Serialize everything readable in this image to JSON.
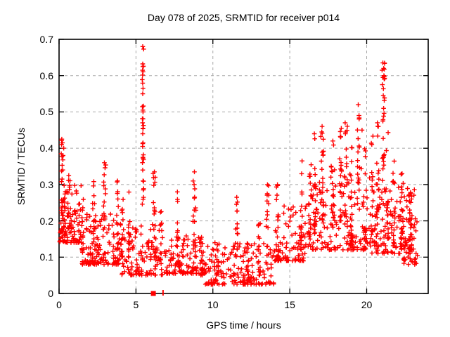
{
  "chart_data": {
    "type": "scatter",
    "title": "Day 078 of 2025, SRMTID for receiver p014",
    "xlabel": "GPS time / hours",
    "ylabel": "SRMTID / TECUs",
    "xlim": [
      0,
      24
    ],
    "ylim": [
      0,
      0.7
    ],
    "xticks": [
      {
        "v": 0,
        "label": "0"
      },
      {
        "v": 5,
        "label": "5"
      },
      {
        "v": 10,
        "label": "10"
      },
      {
        "v": 15,
        "label": "15"
      },
      {
        "v": 20,
        "label": "20"
      }
    ],
    "yticks": [
      {
        "v": 0.0,
        "label": "0"
      },
      {
        "v": 0.1,
        "label": "0.1"
      },
      {
        "v": 0.2,
        "label": "0.2"
      },
      {
        "v": 0.3,
        "label": "0.3"
      },
      {
        "v": 0.4,
        "label": "0.4"
      },
      {
        "v": 0.5,
        "label": "0.5"
      },
      {
        "v": 0.6,
        "label": "0.6"
      },
      {
        "v": 0.7,
        "label": "0.7"
      }
    ],
    "grid": {
      "on": true,
      "color": "#a8a8a8",
      "dash": "4 4"
    },
    "legend": "none",
    "marker": {
      "type": "plus",
      "size": 7,
      "color": "#ff0000"
    },
    "series_name": "SRMTID",
    "seed": 20250314,
    "points": [
      [
        0.18,
        0.425
      ],
      [
        0.22,
        0.415
      ],
      [
        0.3,
        0.4
      ],
      [
        0.14,
        0.385
      ],
      [
        0.26,
        0.38
      ],
      [
        5.44,
        0.68
      ],
      [
        5.45,
        0.625
      ],
      [
        5.43,
        0.615
      ],
      [
        5.46,
        0.565
      ],
      [
        5.44,
        0.55
      ],
      [
        5.45,
        0.505
      ],
      [
        5.46,
        0.5
      ],
      [
        5.43,
        0.47
      ],
      [
        5.45,
        0.455
      ],
      [
        5.44,
        0.44
      ],
      [
        5.46,
        0.415
      ],
      [
        5.43,
        0.405
      ],
      [
        5.45,
        0.375
      ],
      [
        5.44,
        0.34
      ],
      [
        5.46,
        0.31
      ],
      [
        2.95,
        0.36
      ],
      [
        3.8,
        0.31
      ],
      [
        6.2,
        0.335
      ],
      [
        6.25,
        0.32
      ],
      [
        8.8,
        0.335
      ],
      [
        8.78,
        0.3
      ],
      [
        11.55,
        0.265
      ],
      [
        13.55,
        0.3
      ],
      [
        14.2,
        0.3
      ],
      [
        15.8,
        0.365
      ],
      [
        16.6,
        0.44
      ],
      [
        17.1,
        0.46
      ],
      [
        17.08,
        0.445
      ],
      [
        17.8,
        0.42
      ],
      [
        18.35,
        0.455
      ],
      [
        18.6,
        0.47
      ],
      [
        18.62,
        0.44
      ],
      [
        19.45,
        0.52
      ],
      [
        19.5,
        0.49
      ],
      [
        19.7,
        0.45
      ],
      [
        21.05,
        0.635
      ],
      [
        21.1,
        0.62
      ],
      [
        21.0,
        0.615
      ],
      [
        21.12,
        0.6
      ],
      [
        21.06,
        0.595
      ],
      [
        21.02,
        0.575
      ],
      [
        21.08,
        0.545
      ],
      [
        21.1,
        0.51
      ],
      [
        21.05,
        0.475
      ],
      [
        20.7,
        0.47
      ],
      [
        22.3,
        0.33
      ],
      [
        23.3,
        0.105
      ]
    ],
    "zero_markers": [
      {
        "x": 6.13,
        "style": "square"
      },
      {
        "x": 6.76,
        "style": "tick"
      }
    ],
    "clusters": [
      {
        "x": 0.75,
        "s": 0.75,
        "lo": 0.14,
        "hi": 0.3,
        "n": 90,
        "t": "band"
      },
      {
        "x": 2.75,
        "s": 1.25,
        "lo": 0.08,
        "hi": 0.22,
        "n": 130,
        "t": "band"
      },
      {
        "x": 5.5,
        "s": 1.5,
        "lo": 0.05,
        "hi": 0.2,
        "n": 120,
        "t": "band"
      },
      {
        "x": 8.25,
        "s": 1.25,
        "lo": 0.055,
        "hi": 0.16,
        "n": 110,
        "t": "band"
      },
      {
        "x": 11.75,
        "s": 2.25,
        "lo": 0.025,
        "hi": 0.14,
        "n": 170,
        "t": "band"
      },
      {
        "x": 15.0,
        "s": 1.0,
        "lo": 0.09,
        "hi": 0.25,
        "n": 90,
        "t": "band"
      },
      {
        "x": 18.0,
        "s": 2.0,
        "lo": 0.12,
        "hi": 0.35,
        "n": 150,
        "t": "band"
      },
      {
        "x": 21.5,
        "s": 1.5,
        "lo": 0.11,
        "hi": 0.32,
        "n": 130,
        "t": "band"
      },
      {
        "x": 22.85,
        "s": 0.45,
        "lo": 0.08,
        "hi": 0.3,
        "n": 55,
        "t": "band"
      },
      {
        "x": 0.2,
        "s": 0.1,
        "lo": 0.17,
        "hi": 0.43,
        "n": 22,
        "t": "col"
      },
      {
        "x": 0.35,
        "s": 0.1,
        "lo": 0.16,
        "hi": 0.3,
        "n": 14,
        "t": "col"
      },
      {
        "x": 0.65,
        "s": 0.15,
        "lo": 0.18,
        "hi": 0.33,
        "n": 18,
        "t": "col"
      },
      {
        "x": 1.55,
        "s": 0.1,
        "lo": 0.12,
        "hi": 0.28,
        "n": 14,
        "t": "col"
      },
      {
        "x": 2.25,
        "s": 0.1,
        "lo": 0.12,
        "hi": 0.31,
        "n": 14,
        "t": "col"
      },
      {
        "x": 2.95,
        "s": 0.08,
        "lo": 0.15,
        "hi": 0.36,
        "n": 16,
        "t": "string"
      },
      {
        "x": 3.8,
        "s": 0.1,
        "lo": 0.12,
        "hi": 0.31,
        "n": 14,
        "t": "col"
      },
      {
        "x": 4.1,
        "s": 0.1,
        "lo": 0.1,
        "hi": 0.26,
        "n": 12,
        "t": "col"
      },
      {
        "x": 4.55,
        "s": 0.1,
        "lo": 0.1,
        "hi": 0.3,
        "n": 14,
        "t": "col"
      },
      {
        "x": 5.45,
        "s": 0.05,
        "lo": 0.2,
        "hi": 0.68,
        "n": 24,
        "t": "string"
      },
      {
        "x": 6.2,
        "s": 0.12,
        "lo": 0.1,
        "hi": 0.34,
        "n": 18,
        "t": "col"
      },
      {
        "x": 6.6,
        "s": 0.1,
        "lo": 0.08,
        "hi": 0.25,
        "n": 12,
        "t": "col"
      },
      {
        "x": 7.7,
        "s": 0.12,
        "lo": 0.08,
        "hi": 0.28,
        "n": 16,
        "t": "col"
      },
      {
        "x": 8.8,
        "s": 0.1,
        "lo": 0.08,
        "hi": 0.34,
        "n": 16,
        "t": "string"
      },
      {
        "x": 9.3,
        "s": 0.1,
        "lo": 0.05,
        "hi": 0.17,
        "n": 12,
        "t": "col"
      },
      {
        "x": 10.3,
        "s": 0.1,
        "lo": 0.05,
        "hi": 0.18,
        "n": 12,
        "t": "col"
      },
      {
        "x": 11.55,
        "s": 0.08,
        "lo": 0.08,
        "hi": 0.27,
        "n": 12,
        "t": "string"
      },
      {
        "x": 12.3,
        "s": 0.1,
        "lo": 0.03,
        "hi": 0.14,
        "n": 12,
        "t": "col"
      },
      {
        "x": 13.0,
        "s": 0.1,
        "lo": 0.05,
        "hi": 0.2,
        "n": 12,
        "t": "col"
      },
      {
        "x": 13.55,
        "s": 0.1,
        "lo": 0.08,
        "hi": 0.3,
        "n": 12,
        "t": "string"
      },
      {
        "x": 14.2,
        "s": 0.1,
        "lo": 0.1,
        "hi": 0.3,
        "n": 14,
        "t": "col"
      },
      {
        "x": 15.75,
        "s": 0.12,
        "lo": 0.12,
        "hi": 0.36,
        "n": 16,
        "t": "col"
      },
      {
        "x": 16.3,
        "s": 0.12,
        "lo": 0.15,
        "hi": 0.4,
        "n": 18,
        "t": "col"
      },
      {
        "x": 16.65,
        "s": 0.1,
        "lo": 0.18,
        "hi": 0.44,
        "n": 18,
        "t": "col"
      },
      {
        "x": 17.1,
        "s": 0.1,
        "lo": 0.15,
        "hi": 0.46,
        "n": 20,
        "t": "string"
      },
      {
        "x": 17.8,
        "s": 0.12,
        "lo": 0.18,
        "hi": 0.42,
        "n": 18,
        "t": "col"
      },
      {
        "x": 18.3,
        "s": 0.1,
        "lo": 0.2,
        "hi": 0.45,
        "n": 20,
        "t": "col"
      },
      {
        "x": 18.65,
        "s": 0.1,
        "lo": 0.18,
        "hi": 0.47,
        "n": 18,
        "t": "string"
      },
      {
        "x": 19.0,
        "s": 0.1,
        "lo": 0.15,
        "hi": 0.42,
        "n": 16,
        "t": "col"
      },
      {
        "x": 19.45,
        "s": 0.08,
        "lo": 0.2,
        "hi": 0.52,
        "n": 16,
        "t": "string"
      },
      {
        "x": 19.9,
        "s": 0.1,
        "lo": 0.15,
        "hi": 0.42,
        "n": 14,
        "t": "col"
      },
      {
        "x": 20.35,
        "s": 0.1,
        "lo": 0.17,
        "hi": 0.45,
        "n": 16,
        "t": "col"
      },
      {
        "x": 20.7,
        "s": 0.1,
        "lo": 0.18,
        "hi": 0.47,
        "n": 16,
        "t": "string"
      },
      {
        "x": 21.1,
        "s": 0.08,
        "lo": 0.3,
        "hi": 0.635,
        "n": 22,
        "t": "string"
      },
      {
        "x": 21.35,
        "s": 0.1,
        "lo": 0.15,
        "hi": 0.45,
        "n": 16,
        "t": "col"
      },
      {
        "x": 21.8,
        "s": 0.12,
        "lo": 0.12,
        "hi": 0.38,
        "n": 16,
        "t": "col"
      },
      {
        "x": 22.3,
        "s": 0.1,
        "lo": 0.12,
        "hi": 0.33,
        "n": 14,
        "t": "col"
      },
      {
        "x": 22.8,
        "s": 0.1,
        "lo": 0.12,
        "hi": 0.28,
        "n": 12,
        "t": "col"
      }
    ]
  }
}
